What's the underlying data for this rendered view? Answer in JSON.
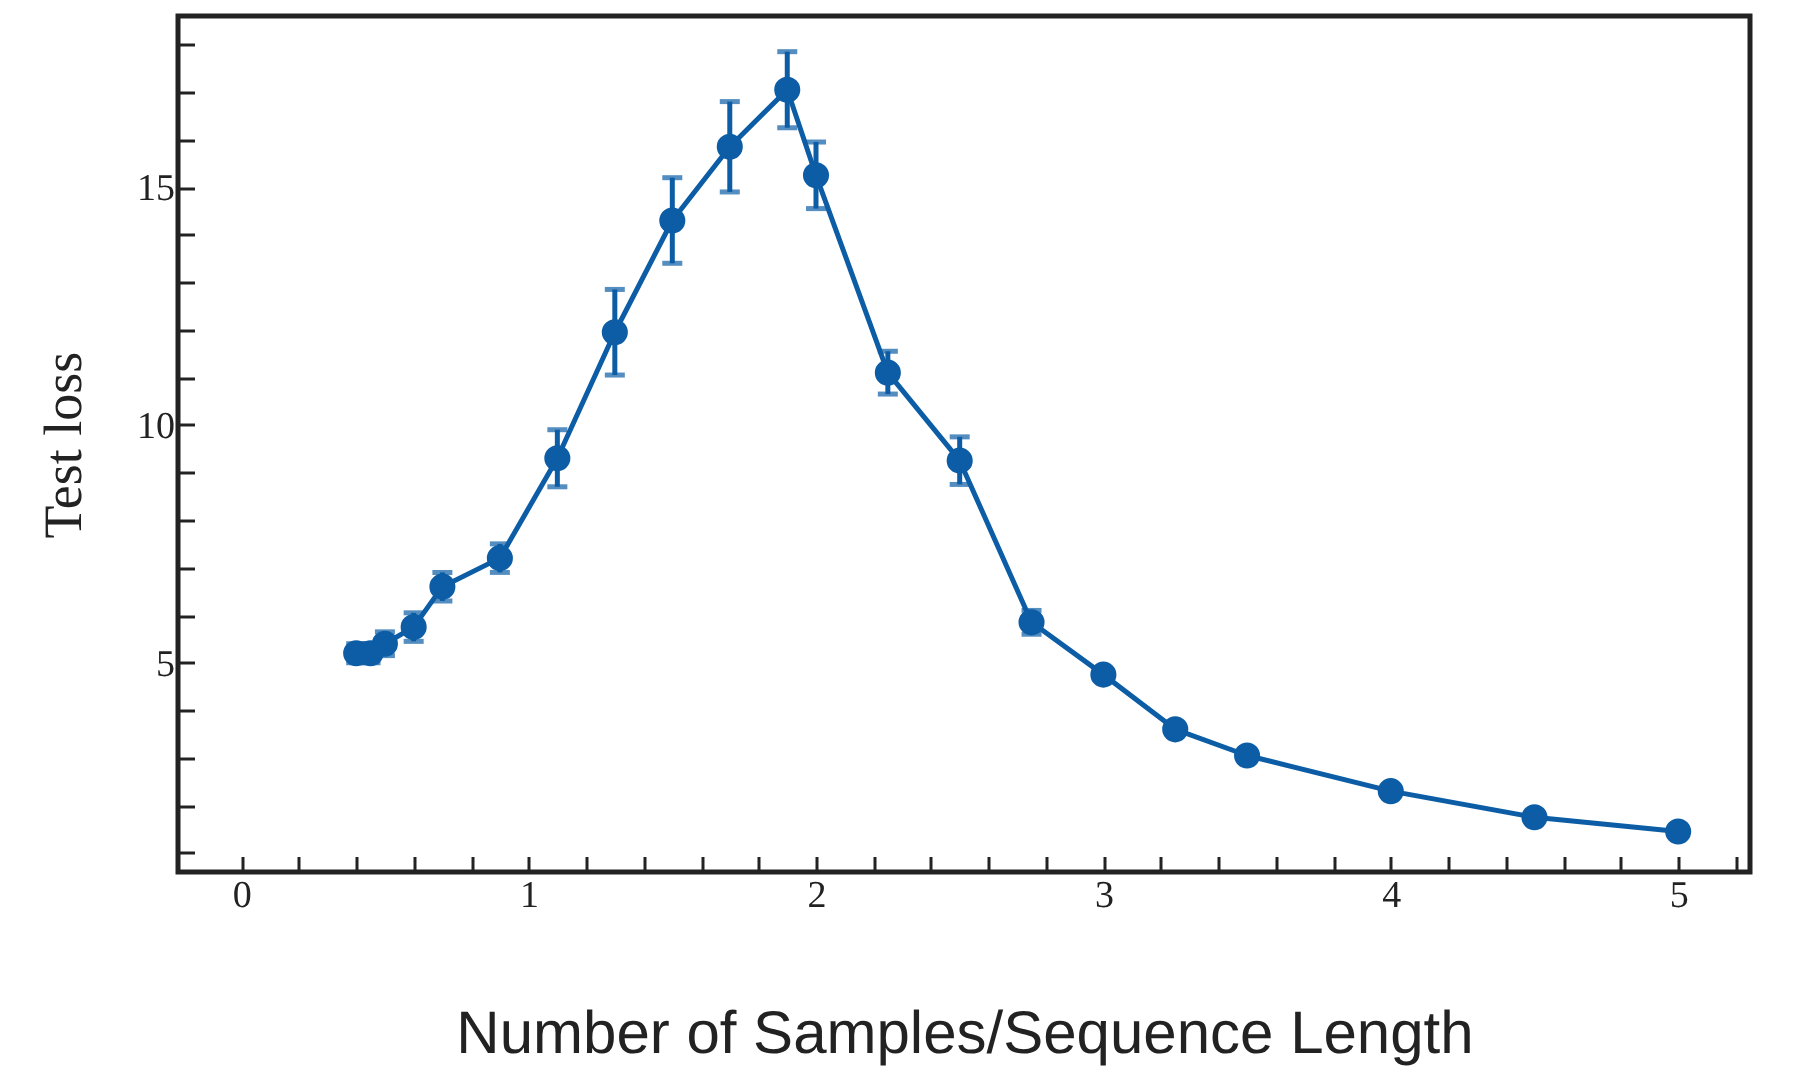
{
  "chart_data": {
    "type": "line",
    "xlabel": "Number of Samples/Sequence Length",
    "ylabel": "Test loss",
    "x": [
      0.4,
      0.45,
      0.5,
      0.6,
      0.7,
      0.9,
      1.1,
      1.3,
      1.5,
      1.7,
      1.9,
      2.0,
      2.25,
      2.5,
      2.75,
      3.0,
      3.25,
      3.5,
      4.0,
      4.5,
      5.0
    ],
    "series": [
      {
        "color": "#0c5da5",
        "values": [
          5.2,
          5.2,
          5.4,
          5.75,
          6.6,
          7.2,
          9.3,
          11.95,
          14.3,
          15.85,
          17.05,
          15.25,
          11.1,
          9.25,
          5.85,
          4.75,
          3.6,
          3.05,
          2.3,
          1.75,
          1.45
        ],
        "errors": [
          0.2,
          0.2,
          0.25,
          0.3,
          0.3,
          0.3,
          0.6,
          0.9,
          0.9,
          0.95,
          0.8,
          0.7,
          0.45,
          0.5,
          0.25,
          null,
          null,
          null,
          null,
          null,
          null
        ]
      }
    ],
    "marker": "circle",
    "line_style": "solid",
    "xlim": [
      -0.22,
      5.25
    ],
    "ylim": [
      0.6,
      18.6
    ],
    "xticks": [
      0,
      {
        "value": 0.2,
        "label": null
      },
      {
        "value": 0.4,
        "label": null
      },
      {
        "value": 0.6,
        "label": null
      },
      {
        "value": 0.8,
        "label": null
      },
      1,
      {
        "value": 1.2,
        "label": null
      },
      {
        "value": 1.4,
        "label": null
      },
      {
        "value": 1.6,
        "label": null
      },
      {
        "value": 1.8,
        "label": null
      },
      2,
      {
        "value": 2.2,
        "label": null
      },
      {
        "value": 2.4,
        "label": null
      },
      {
        "value": 2.6,
        "label": null
      },
      {
        "value": 2.8,
        "label": null
      },
      3,
      {
        "value": 3.2,
        "label": null
      },
      {
        "value": 3.4,
        "label": null
      },
      {
        "value": 3.6,
        "label": null
      },
      {
        "value": 3.8,
        "label": null
      },
      4,
      {
        "value": 4.2,
        "label": null
      },
      {
        "value": 4.4,
        "label": null
      },
      {
        "value": 4.6,
        "label": null
      },
      {
        "value": 4.8,
        "label": null
      },
      5,
      {
        "value": 5.2,
        "label": null
      }
    ],
    "yticks": [
      {
        "value": 1,
        "label": null
      },
      {
        "value": 2,
        "label": null
      },
      {
        "value": 3,
        "label": null
      },
      {
        "value": 4,
        "label": null
      },
      5,
      {
        "value": 6,
        "label": null
      },
      {
        "value": 7,
        "label": null
      },
      {
        "value": 8,
        "label": null
      },
      {
        "value": 9,
        "label": null
      },
      10,
      {
        "value": 11,
        "label": null
      },
      {
        "value": 12,
        "label": null
      },
      {
        "value": 13,
        "label": null
      },
      {
        "value": 14,
        "label": null
      },
      15,
      {
        "value": 16,
        "label": null
      },
      {
        "value": 17,
        "label": null
      },
      {
        "value": 18,
        "label": null
      }
    ]
  }
}
